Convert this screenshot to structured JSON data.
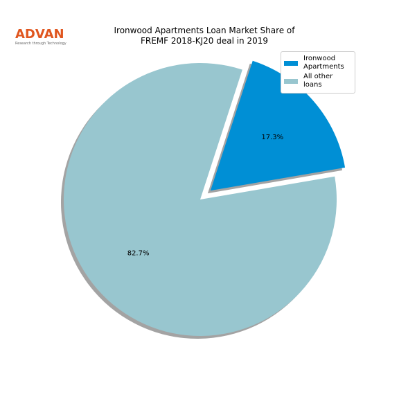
{
  "logo": {
    "name": "ADVAN",
    "tagline": "Research through Technology"
  },
  "chart_data": {
    "type": "pie",
    "title": "Ironwood Apartments Loan Market Share of\nFREMF 2018-KJ20 deal in 2019",
    "categories": [
      "Ironwood\nApartments",
      "All other loans"
    ],
    "values": [
      17.3,
      82.7
    ],
    "value_labels": [
      "17.3%",
      "82.7%"
    ],
    "colors": [
      "#008fd5",
      "#98c6cf"
    ],
    "legend": "upper right",
    "shadow": true
  }
}
